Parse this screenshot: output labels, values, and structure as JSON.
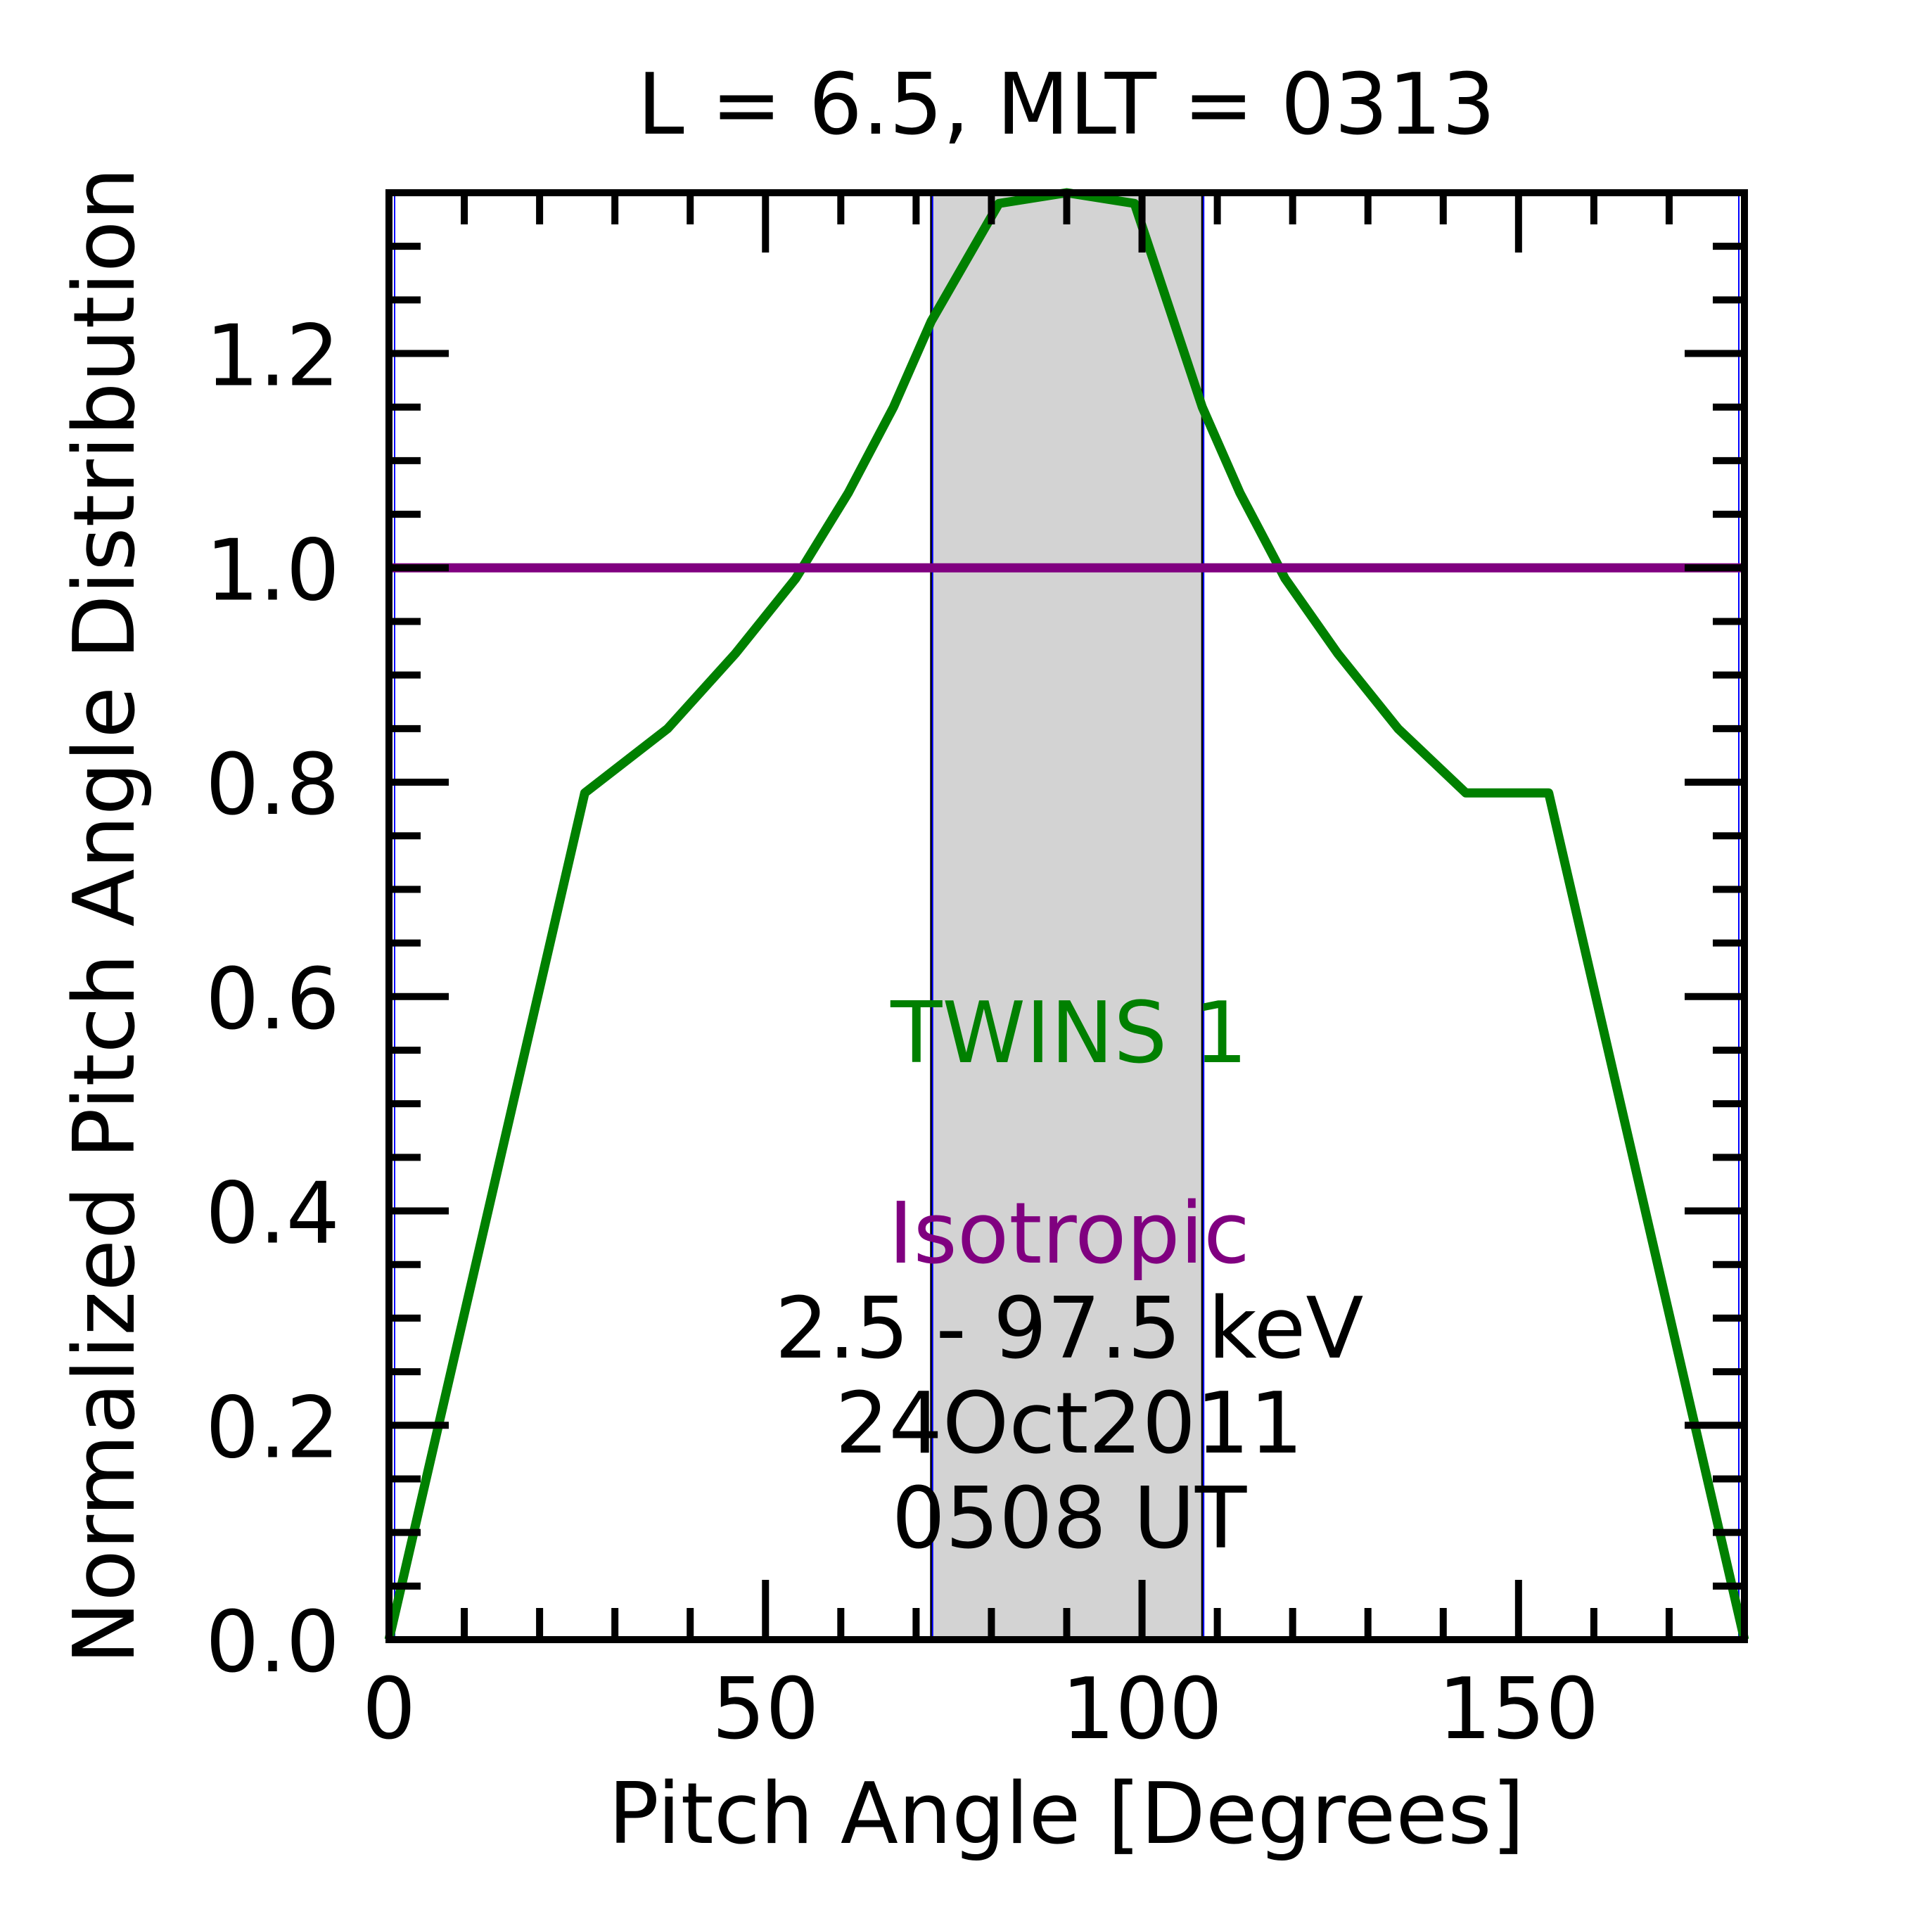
{
  "chart_data": {
    "type": "line",
    "title": "L =  6.5, MLT = 0313",
    "xlabel": "Pitch Angle [Degrees]",
    "ylabel": "Normalized Pitch Angle Distribution",
    "xlim": [
      0,
      180
    ],
    "ylim": [
      0,
      1.35
    ],
    "grid": false,
    "x_ticks": [
      0,
      50,
      100,
      150
    ],
    "x_tick_labels": [
      "0",
      "50",
      "100",
      "150"
    ],
    "y_ticks": [
      0,
      0.2,
      0.4,
      0.6,
      0.8,
      1.0,
      1.2
    ],
    "y_tick_labels": [
      "0.0",
      "0.2",
      "0.4",
      "0.6",
      "0.8",
      "1.0",
      "1.2"
    ],
    "shaded_band": {
      "x": [
        72,
        108
      ],
      "color": "#d3d3d3"
    },
    "series": [
      {
        "name": "TWINS 1",
        "color": "#008000",
        "x": [
          0,
          26,
          37,
          46,
          54,
          61,
          67,
          72,
          81,
          90,
          99,
          108,
          113,
          119,
          126,
          134,
          143,
          154,
          180
        ],
        "y": [
          0.0,
          0.79,
          0.85,
          0.92,
          0.99,
          1.07,
          1.15,
          1.23,
          1.34,
          1.35,
          1.34,
          1.15,
          1.07,
          0.99,
          0.92,
          0.85,
          0.79,
          0.79,
          0.0
        ]
      },
      {
        "name": "Isotropic",
        "color": "#800080",
        "x": [
          0,
          180
        ],
        "y": [
          1.0,
          1.0
        ]
      }
    ],
    "annotations": [
      {
        "text": "TWINS 1",
        "color": "#008000"
      },
      {
        "text": "Isotropic",
        "color": "#800080"
      },
      {
        "text": "2.5 - 97.5 keV",
        "color": "#000000"
      },
      {
        "text": "24Oct2011",
        "color": "#000000"
      },
      {
        "text": "0508 UT",
        "color": "#000000"
      }
    ]
  }
}
